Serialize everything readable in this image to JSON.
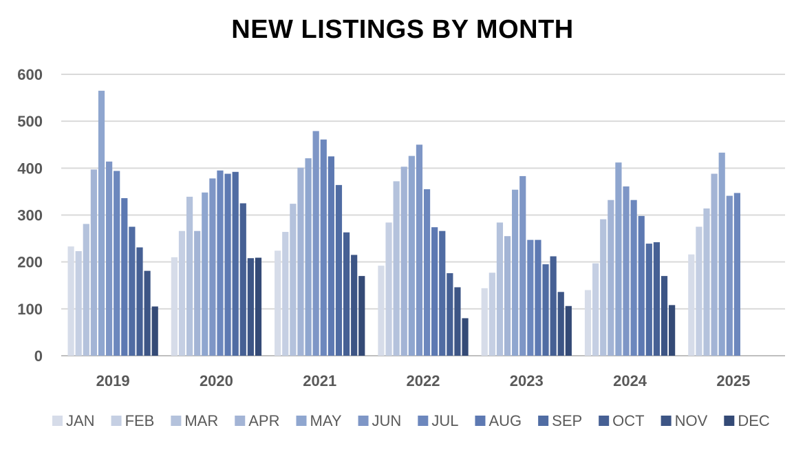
{
  "chart_data": {
    "type": "bar",
    "title": "NEW LISTINGS BY MONTH",
    "categories": [
      "2019",
      "2020",
      "2021",
      "2022",
      "2023",
      "2024",
      "2025"
    ],
    "ylim": [
      0,
      600
    ],
    "yticks": [
      "0",
      "100",
      "200",
      "300",
      "400",
      "500",
      "600"
    ],
    "grid": true,
    "legend_position": "bottom",
    "series": [
      {
        "name": "JAN",
        "color": "#d6dce9",
        "values": [
          233,
          210,
          224,
          192,
          144,
          140,
          216
        ]
      },
      {
        "name": "FEB",
        "color": "#c5cfe3",
        "values": [
          223,
          266,
          264,
          284,
          177,
          197,
          275
        ]
      },
      {
        "name": "MAR",
        "color": "#b4c2dc",
        "values": [
          281,
          339,
          324,
          372,
          284,
          291,
          314
        ]
      },
      {
        "name": "APR",
        "color": "#a3b4d5",
        "values": [
          397,
          266,
          401,
          403,
          255,
          332,
          388
        ]
      },
      {
        "name": "MAY",
        "color": "#8fa6cf",
        "values": [
          565,
          348,
          421,
          426,
          354,
          412,
          433
        ]
      },
      {
        "name": "JUN",
        "color": "#7e96c6",
        "values": [
          414,
          378,
          479,
          450,
          383,
          361,
          341
        ]
      },
      {
        "name": "JUL",
        "color": "#6c87bd",
        "values": [
          394,
          395,
          461,
          355,
          247,
          332,
          347
        ]
      },
      {
        "name": "AUG",
        "color": "#5d79b2",
        "values": [
          336,
          388,
          425,
          274,
          247,
          298,
          null
        ]
      },
      {
        "name": "SEP",
        "color": "#506ca3",
        "values": [
          275,
          392,
          364,
          266,
          195,
          239,
          null
        ]
      },
      {
        "name": "OCT",
        "color": "#466094",
        "values": [
          231,
          325,
          263,
          176,
          212,
          242,
          null
        ]
      },
      {
        "name": "NOV",
        "color": "#3d5585",
        "values": [
          181,
          208,
          215,
          146,
          136,
          170,
          null
        ]
      },
      {
        "name": "DEC",
        "color": "#344a76",
        "values": [
          105,
          209,
          170,
          80,
          106,
          108,
          null
        ]
      }
    ]
  }
}
